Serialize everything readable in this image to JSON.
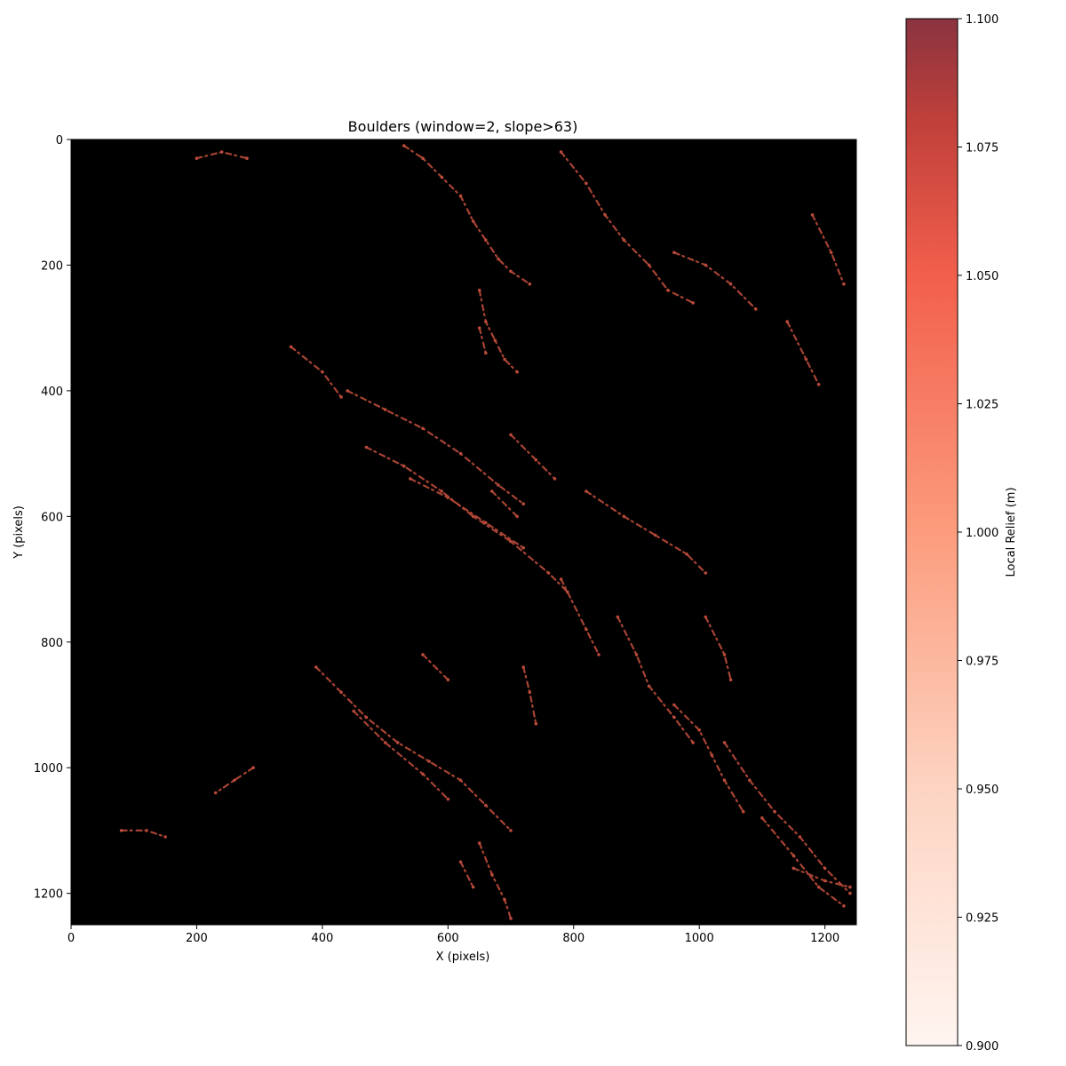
{
  "chart_data": {
    "type": "heatmap",
    "title": "Boulders (window=2, slope>63)",
    "xlabel": "X (pixels)",
    "ylabel": "Y (pixels)",
    "xlim": [
      0,
      1250
    ],
    "ylim": [
      1250,
      0
    ],
    "x_ticks": [
      0,
      200,
      400,
      600,
      800,
      1000,
      1200
    ],
    "y_ticks": [
      0,
      200,
      400,
      600,
      800,
      1000,
      1200
    ],
    "background_color": "#000000",
    "mark_color": "#b94a3a",
    "colorbar": {
      "label": "Local Relief (m)",
      "range": [
        0.9,
        1.1
      ],
      "ticks": [
        "0.900",
        "0.925",
        "0.950",
        "0.975",
        "1.000",
        "1.025",
        "1.050",
        "1.075",
        "1.100"
      ],
      "colormap": "Reds",
      "alpha": 0.7
    },
    "features": [
      {
        "points": [
          [
            530,
            10
          ],
          [
            560,
            30
          ],
          [
            590,
            60
          ],
          [
            620,
            90
          ],
          [
            640,
            130
          ],
          [
            660,
            160
          ],
          [
            680,
            190
          ],
          [
            700,
            210
          ],
          [
            730,
            230
          ]
        ]
      },
      {
        "points": [
          [
            650,
            240
          ],
          [
            660,
            290
          ],
          [
            675,
            320
          ],
          [
            690,
            350
          ],
          [
            710,
            370
          ]
        ]
      },
      {
        "points": [
          [
            650,
            300
          ],
          [
            660,
            340
          ]
        ]
      },
      {
        "points": [
          [
            780,
            20
          ],
          [
            820,
            70
          ],
          [
            850,
            120
          ],
          [
            880,
            160
          ],
          [
            920,
            200
          ],
          [
            950,
            240
          ],
          [
            990,
            260
          ]
        ]
      },
      {
        "points": [
          [
            960,
            180
          ],
          [
            1010,
            200
          ],
          [
            1050,
            230
          ],
          [
            1090,
            270
          ]
        ]
      },
      {
        "points": [
          [
            1180,
            120
          ],
          [
            1210,
            180
          ],
          [
            1230,
            230
          ]
        ]
      },
      {
        "points": [
          [
            1140,
            290
          ],
          [
            1170,
            350
          ],
          [
            1190,
            390
          ]
        ]
      },
      {
        "points": [
          [
            440,
            400
          ],
          [
            500,
            430
          ],
          [
            560,
            460
          ],
          [
            620,
            500
          ],
          [
            680,
            550
          ],
          [
            720,
            580
          ]
        ]
      },
      {
        "points": [
          [
            470,
            490
          ],
          [
            530,
            520
          ],
          [
            590,
            560
          ],
          [
            640,
            600
          ],
          [
            700,
            640
          ],
          [
            760,
            690
          ],
          [
            790,
            720
          ]
        ]
      },
      {
        "points": [
          [
            540,
            540
          ],
          [
            600,
            570
          ],
          [
            660,
            610
          ],
          [
            720,
            650
          ]
        ]
      },
      {
        "points": [
          [
            820,
            560
          ],
          [
            880,
            600
          ],
          [
            930,
            630
          ],
          [
            980,
            660
          ],
          [
            1010,
            690
          ]
        ]
      },
      {
        "points": [
          [
            700,
            470
          ],
          [
            740,
            510
          ],
          [
            770,
            540
          ]
        ]
      },
      {
        "points": [
          [
            670,
            560
          ],
          [
            710,
            600
          ]
        ]
      },
      {
        "points": [
          [
            780,
            700
          ],
          [
            820,
            780
          ],
          [
            840,
            820
          ]
        ]
      },
      {
        "points": [
          [
            870,
            760
          ],
          [
            900,
            820
          ],
          [
            920,
            870
          ],
          [
            960,
            920
          ],
          [
            990,
            960
          ]
        ]
      },
      {
        "points": [
          [
            960,
            900
          ],
          [
            1000,
            940
          ],
          [
            1020,
            980
          ],
          [
            1040,
            1020
          ],
          [
            1070,
            1070
          ]
        ]
      },
      {
        "points": [
          [
            1040,
            960
          ],
          [
            1080,
            1020
          ],
          [
            1120,
            1070
          ],
          [
            1160,
            1110
          ],
          [
            1200,
            1160
          ],
          [
            1240,
            1200
          ]
        ]
      },
      {
        "points": [
          [
            1100,
            1080
          ],
          [
            1150,
            1140
          ],
          [
            1190,
            1190
          ],
          [
            1230,
            1220
          ]
        ]
      },
      {
        "points": [
          [
            1010,
            760
          ],
          [
            1040,
            820
          ],
          [
            1050,
            860
          ]
        ]
      },
      {
        "points": [
          [
            390,
            840
          ],
          [
            430,
            880
          ],
          [
            470,
            920
          ],
          [
            520,
            960
          ],
          [
            570,
            990
          ],
          [
            620,
            1020
          ],
          [
            660,
            1060
          ],
          [
            700,
            1100
          ]
        ]
      },
      {
        "points": [
          [
            450,
            910
          ],
          [
            500,
            960
          ],
          [
            560,
            1010
          ],
          [
            600,
            1050
          ]
        ]
      },
      {
        "points": [
          [
            650,
            1120
          ],
          [
            670,
            1170
          ],
          [
            690,
            1210
          ],
          [
            700,
            1240
          ]
        ]
      },
      {
        "points": [
          [
            620,
            1150
          ],
          [
            640,
            1190
          ]
        ]
      },
      {
        "points": [
          [
            720,
            840
          ],
          [
            730,
            880
          ],
          [
            740,
            930
          ]
        ]
      },
      {
        "points": [
          [
            290,
            1000
          ],
          [
            260,
            1020
          ],
          [
            230,
            1040
          ]
        ]
      },
      {
        "points": [
          [
            80,
            1100
          ],
          [
            120,
            1100
          ],
          [
            150,
            1110
          ]
        ]
      },
      {
        "points": [
          [
            200,
            30
          ],
          [
            240,
            20
          ],
          [
            280,
            30
          ]
        ]
      },
      {
        "points": [
          [
            350,
            330
          ],
          [
            400,
            370
          ],
          [
            430,
            410
          ]
        ]
      },
      {
        "points": [
          [
            560,
            820
          ],
          [
            600,
            860
          ]
        ]
      },
      {
        "points": [
          [
            1150,
            1160
          ],
          [
            1200,
            1180
          ],
          [
            1240,
            1190
          ]
        ]
      }
    ]
  }
}
